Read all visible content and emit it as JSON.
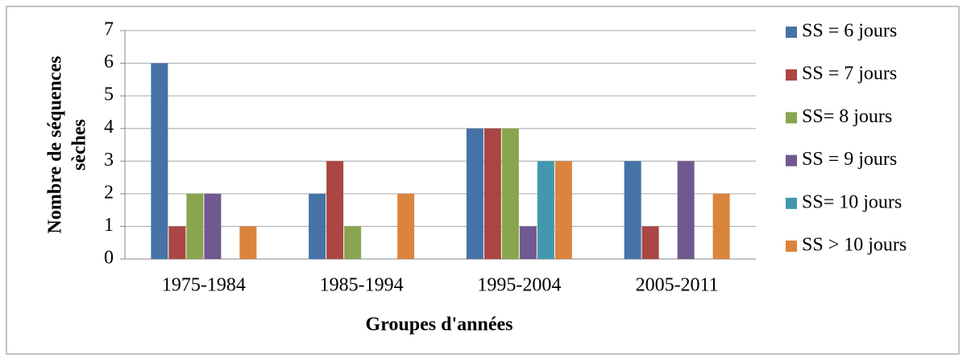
{
  "chart_data": {
    "type": "bar",
    "xlabel": "Groupes d'années",
    "ylabel": [
      "Nombre de séquences",
      "sèches"
    ],
    "categories": [
      "1975-1984",
      "1985-1994",
      "1995-2004",
      "2005-2011"
    ],
    "series": [
      {
        "name": "SS = 6 jours",
        "color": "#4572a7",
        "values": [
          6,
          2,
          4,
          3
        ]
      },
      {
        "name": "SS = 7 jours",
        "color": "#aa4643",
        "values": [
          1,
          3,
          4,
          1
        ]
      },
      {
        "name": "SS= 8 jours",
        "color": "#89a54e",
        "values": [
          2,
          1,
          4,
          0
        ]
      },
      {
        "name": "SS = 9 jours",
        "color": "#71588f",
        "values": [
          2,
          0,
          1,
          3
        ]
      },
      {
        "name": "SS= 10 jours",
        "color": "#4198af",
        "values": [
          0,
          0,
          3,
          0
        ]
      },
      {
        "name": "SS > 10 jours",
        "color": "#db843d",
        "values": [
          1,
          2,
          3,
          2
        ]
      }
    ],
    "ylim": [
      0,
      7
    ],
    "yticks": [
      0,
      1,
      2,
      3,
      4,
      5,
      6,
      7
    ],
    "grid": true,
    "legend": "right"
  }
}
